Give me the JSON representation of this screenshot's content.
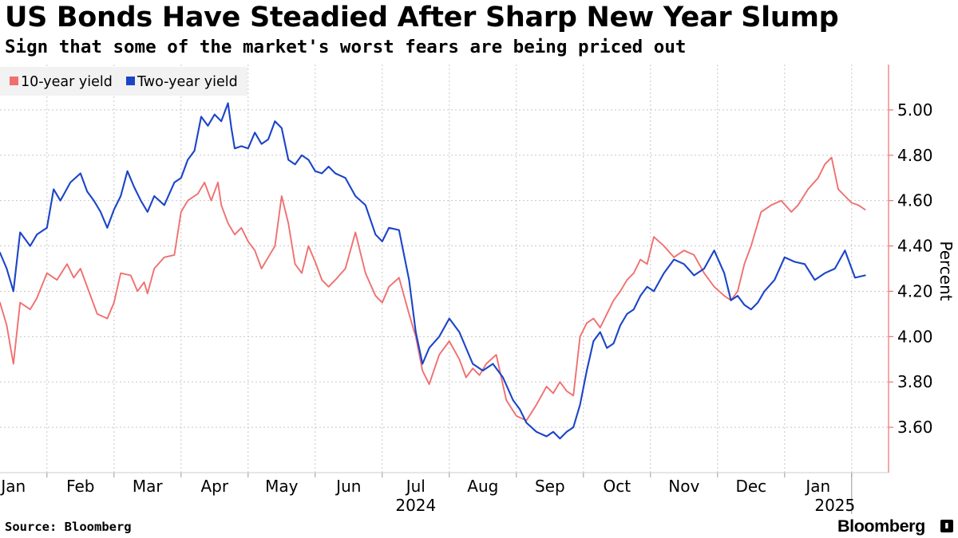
{
  "chart_data": {
    "type": "line",
    "title": "US Bonds Have Steadied After Sharp New Year Slump",
    "subtitle": "Sign that some of the market's worst fears are being priced out",
    "source": "Source: Bloomberg",
    "brand": "Bloomberg",
    "ylabel": "Percent",
    "ylim": [
      3.4,
      5.2
    ],
    "yticks": [
      3.6,
      3.8,
      4.0,
      4.2,
      4.4,
      4.6,
      4.8,
      5.0
    ],
    "ytick_labels": [
      "3.60",
      "3.80",
      "4.00",
      "4.20",
      "4.40",
      "4.60",
      "4.80",
      "5.00"
    ],
    "xlim": [
      0.3,
      13.55
    ],
    "xticks": [
      {
        "label": "Jan",
        "pos": 0.5
      },
      {
        "label": "Feb",
        "pos": 1.5
      },
      {
        "label": "Mar",
        "pos": 2.5
      },
      {
        "label": "Apr",
        "pos": 3.5
      },
      {
        "label": "May",
        "pos": 4.5
      },
      {
        "label": "Jun",
        "pos": 5.5
      },
      {
        "label": "Jul",
        "pos": 6.5
      },
      {
        "label": "Aug",
        "pos": 7.5
      },
      {
        "label": "Sep",
        "pos": 8.5
      },
      {
        "label": "Oct",
        "pos": 9.5
      },
      {
        "label": "Nov",
        "pos": 10.5
      },
      {
        "label": "Dec",
        "pos": 11.5
      },
      {
        "label": "Jan",
        "pos": 12.5
      }
    ],
    "month_boundaries": [
      1,
      2,
      3,
      4,
      5,
      6,
      7,
      8,
      9,
      10,
      11,
      12,
      13
    ],
    "year_labels": [
      {
        "label": "2024",
        "pos": 6.5
      },
      {
        "label": "2025",
        "pos": 12.75
      }
    ],
    "year_divider": 13,
    "legend": {
      "position": "top-left"
    },
    "grid": true,
    "series": [
      {
        "name": "10-year yield",
        "color": "#f07070",
        "x": [
          0.3,
          0.4,
          0.5,
          0.6,
          0.75,
          0.85,
          1.0,
          1.15,
          1.3,
          1.4,
          1.5,
          1.6,
          1.75,
          1.9,
          2.0,
          2.1,
          2.25,
          2.35,
          2.45,
          2.5,
          2.6,
          2.75,
          2.9,
          3.0,
          3.1,
          3.25,
          3.35,
          3.45,
          3.55,
          3.6,
          3.7,
          3.8,
          3.9,
          4.0,
          4.1,
          4.2,
          4.3,
          4.4,
          4.5,
          4.6,
          4.7,
          4.8,
          4.9,
          5.0,
          5.1,
          5.2,
          5.3,
          5.45,
          5.6,
          5.75,
          5.9,
          6.0,
          6.1,
          6.25,
          6.4,
          6.5,
          6.6,
          6.7,
          6.85,
          7.0,
          7.15,
          7.25,
          7.35,
          7.45,
          7.55,
          7.7,
          7.85,
          8.0,
          8.15,
          8.3,
          8.45,
          8.55,
          8.65,
          8.75,
          8.85,
          8.95,
          9.05,
          9.15,
          9.25,
          9.35,
          9.45,
          9.55,
          9.65,
          9.75,
          9.85,
          9.95,
          10.05,
          10.2,
          10.35,
          10.5,
          10.65,
          10.8,
          10.95,
          11.1,
          11.2,
          11.3,
          11.4,
          11.5,
          11.65,
          11.8,
          11.95,
          12.1,
          12.2,
          12.35,
          12.5,
          12.6,
          12.7,
          12.8,
          12.9,
          13.0,
          13.1,
          13.2
        ],
        "y": [
          4.15,
          4.05,
          3.88,
          4.15,
          4.12,
          4.17,
          4.28,
          4.25,
          4.32,
          4.26,
          4.3,
          4.22,
          4.1,
          4.08,
          4.15,
          4.28,
          4.27,
          4.2,
          4.24,
          4.19,
          4.3,
          4.35,
          4.36,
          4.55,
          4.6,
          4.63,
          4.68,
          4.6,
          4.68,
          4.58,
          4.5,
          4.45,
          4.48,
          4.42,
          4.38,
          4.3,
          4.35,
          4.4,
          4.62,
          4.5,
          4.32,
          4.28,
          4.4,
          4.33,
          4.25,
          4.22,
          4.25,
          4.3,
          4.46,
          4.28,
          4.18,
          4.15,
          4.22,
          4.26,
          4.1,
          4.0,
          3.85,
          3.79,
          3.92,
          3.98,
          3.9,
          3.82,
          3.86,
          3.83,
          3.88,
          3.92,
          3.72,
          3.65,
          3.63,
          3.7,
          3.78,
          3.75,
          3.8,
          3.76,
          3.74,
          4.0,
          4.06,
          4.08,
          4.04,
          4.1,
          4.16,
          4.2,
          4.25,
          4.28,
          4.34,
          4.32,
          4.44,
          4.4,
          4.35,
          4.38,
          4.36,
          4.28,
          4.22,
          4.18,
          4.16,
          4.2,
          4.32,
          4.4,
          4.55,
          4.58,
          4.6,
          4.55,
          4.58,
          4.65,
          4.7,
          4.76,
          4.79,
          4.65,
          4.62,
          4.59,
          4.58,
          4.56
        ]
      },
      {
        "name": "Two-year yield",
        "color": "#1b44c8",
        "x": [
          0.3,
          0.4,
          0.5,
          0.6,
          0.75,
          0.85,
          1.0,
          1.1,
          1.2,
          1.35,
          1.5,
          1.6,
          1.7,
          1.8,
          1.9,
          2.0,
          2.1,
          2.2,
          2.3,
          2.4,
          2.5,
          2.6,
          2.75,
          2.9,
          3.0,
          3.1,
          3.2,
          3.3,
          3.4,
          3.5,
          3.6,
          3.7,
          3.75,
          3.8,
          3.9,
          4.0,
          4.1,
          4.2,
          4.3,
          4.4,
          4.5,
          4.6,
          4.7,
          4.8,
          4.9,
          5.0,
          5.1,
          5.2,
          5.3,
          5.45,
          5.6,
          5.75,
          5.9,
          6.0,
          6.1,
          6.25,
          6.4,
          6.5,
          6.6,
          6.7,
          6.85,
          7.0,
          7.15,
          7.25,
          7.35,
          7.5,
          7.65,
          7.8,
          7.95,
          8.05,
          8.15,
          8.3,
          8.45,
          8.55,
          8.65,
          8.75,
          8.85,
          8.95,
          9.05,
          9.15,
          9.25,
          9.35,
          9.45,
          9.55,
          9.65,
          9.75,
          9.85,
          9.95,
          10.05,
          10.2,
          10.35,
          10.5,
          10.65,
          10.8,
          10.95,
          11.1,
          11.2,
          11.3,
          11.4,
          11.5,
          11.6,
          11.7,
          11.85,
          12.0,
          12.15,
          12.3,
          12.45,
          12.6,
          12.75,
          12.9,
          13.05,
          13.2
        ],
        "y": [
          4.37,
          4.3,
          4.2,
          4.46,
          4.4,
          4.45,
          4.48,
          4.65,
          4.6,
          4.68,
          4.72,
          4.64,
          4.6,
          4.55,
          4.48,
          4.56,
          4.62,
          4.73,
          4.66,
          4.6,
          4.55,
          4.62,
          4.58,
          4.68,
          4.7,
          4.78,
          4.82,
          4.97,
          4.93,
          4.98,
          4.95,
          5.03,
          4.92,
          4.83,
          4.84,
          4.83,
          4.9,
          4.85,
          4.87,
          4.95,
          4.92,
          4.78,
          4.76,
          4.8,
          4.78,
          4.73,
          4.72,
          4.75,
          4.72,
          4.7,
          4.62,
          4.58,
          4.45,
          4.42,
          4.48,
          4.47,
          4.25,
          4.02,
          3.88,
          3.95,
          4.0,
          4.08,
          4.02,
          3.95,
          3.88,
          3.85,
          3.88,
          3.82,
          3.72,
          3.68,
          3.62,
          3.58,
          3.56,
          3.58,
          3.55,
          3.58,
          3.6,
          3.7,
          3.85,
          3.98,
          4.02,
          3.95,
          3.97,
          4.05,
          4.1,
          4.12,
          4.18,
          4.22,
          4.2,
          4.28,
          4.34,
          4.32,
          4.27,
          4.3,
          4.38,
          4.28,
          4.16,
          4.18,
          4.14,
          4.12,
          4.15,
          4.2,
          4.25,
          4.35,
          4.33,
          4.32,
          4.25,
          4.28,
          4.3,
          4.38,
          4.26,
          4.27
        ]
      }
    ]
  }
}
